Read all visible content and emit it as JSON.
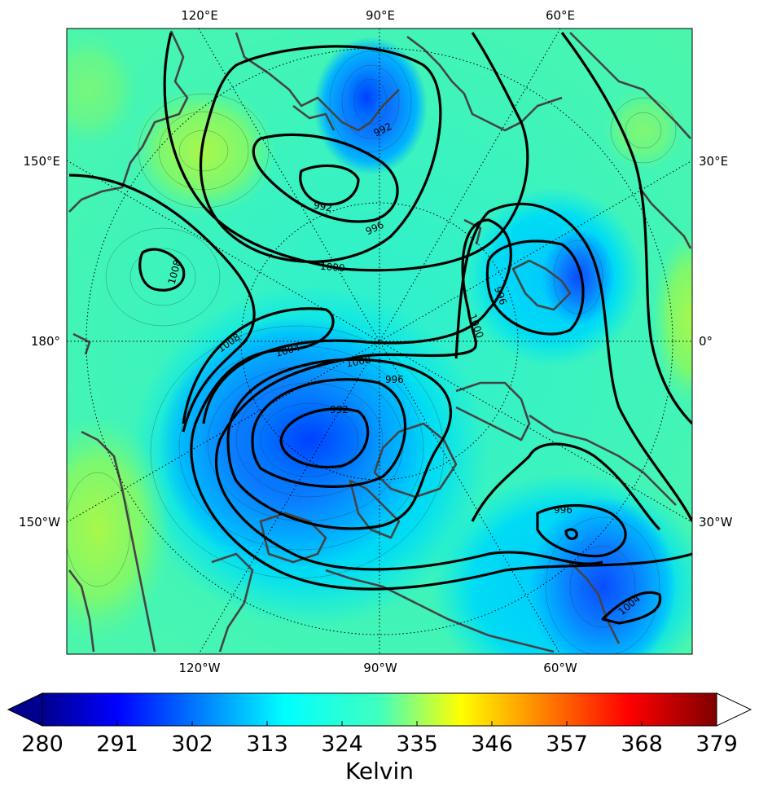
{
  "map": {
    "projection": "north-polar-stereographic",
    "field": "potential temperature (filled)",
    "contour_field": "pressure (thick black contours)",
    "top_longitude_labels": [
      "120°E",
      "90°E",
      "60°E"
    ],
    "bottom_longitude_labels": [
      "120°W",
      "90°W",
      "60°W"
    ],
    "left_longitude_labels": [
      "150°E",
      "180°",
      "150°W"
    ],
    "right_longitude_labels": [
      "30°E",
      "0°",
      "30°W"
    ],
    "contour_labels": [
      {
        "text": "992"
      },
      {
        "text": "992"
      },
      {
        "text": "996"
      },
      {
        "text": "1000"
      },
      {
        "text": "1008"
      },
      {
        "text": "1008"
      },
      {
        "text": "1004"
      },
      {
        "text": "1000"
      },
      {
        "text": "996"
      },
      {
        "text": "992"
      },
      {
        "text": "996"
      },
      {
        "text": "1000"
      },
      {
        "text": "996"
      },
      {
        "text": "1004"
      }
    ],
    "colors": {
      "coastline": "#444444",
      "contour": "#000000",
      "graticule": "#000000"
    }
  },
  "colorbar": {
    "label": "Kelvin",
    "min": 280,
    "max": 379,
    "ticks": [
      "280",
      "291",
      "302",
      "313",
      "324",
      "335",
      "346",
      "357",
      "368",
      "379"
    ],
    "extend": "both",
    "colormap": "jet"
  }
}
